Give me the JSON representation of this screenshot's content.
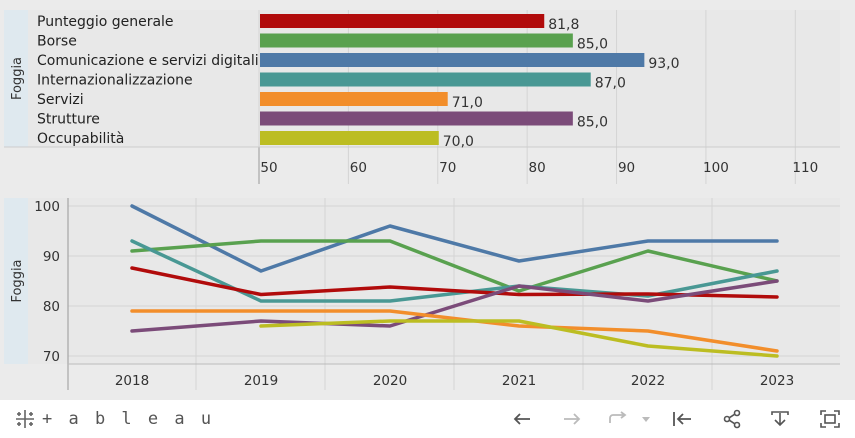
{
  "chart_data": [
    {
      "type": "bar",
      "orientation": "horizontal",
      "row_header": "Foggia",
      "categories": [
        "Punteggio generale",
        "Borse",
        "Comunicazione e servizi digitali",
        "Internazionalizzazione",
        "Servizi",
        "Strutture",
        "Occupabilità"
      ],
      "values": [
        81.8,
        85.0,
        93.0,
        87.0,
        71.0,
        85.0,
        70.0
      ],
      "value_labels": [
        "81,8",
        "85,0",
        "93,0",
        "87,0",
        "71,0",
        "85,0",
        "70,0"
      ],
      "colors": [
        "#b10b0b",
        "#59a14f",
        "#4e79a7",
        "#499894",
        "#f28e2b",
        "#7b4b79",
        "#bcbd22"
      ],
      "xlim": [
        50,
        115
      ],
      "xticks": [
        50,
        60,
        70,
        80,
        90,
        100,
        110
      ],
      "grid": true
    },
    {
      "type": "line",
      "row_header": "Foggia",
      "x": [
        "2018",
        "2019",
        "2020",
        "2021",
        "2022",
        "2023"
      ],
      "ylim": [
        69,
        101
      ],
      "yticks": [
        70,
        80,
        90,
        100
      ],
      "grid": true,
      "series": [
        {
          "color": "#4e79a7",
          "values": [
            100,
            87,
            96,
            89,
            93,
            93
          ]
        },
        {
          "color": "#59a14f",
          "values": [
            91,
            93,
            93,
            83,
            91,
            85
          ]
        },
        {
          "color": "#499894",
          "values": [
            93,
            81,
            81,
            84,
            82,
            87
          ]
        },
        {
          "color": "#b10b0b",
          "values": [
            87.6,
            82.3,
            83.8,
            82.3,
            82.4,
            81.8
          ]
        },
        {
          "color": "#7b4b79",
          "values": [
            75,
            77,
            76,
            84,
            81,
            85
          ]
        },
        {
          "color": "#f28e2b",
          "values": [
            79,
            79,
            79,
            76,
            75,
            71
          ]
        },
        {
          "color": "#bcbd22",
          "values": [
            null,
            76,
            77,
            77,
            72,
            70
          ]
        }
      ]
    }
  ],
  "toolbar": {
    "logo_text": "+ a b l e a u"
  }
}
